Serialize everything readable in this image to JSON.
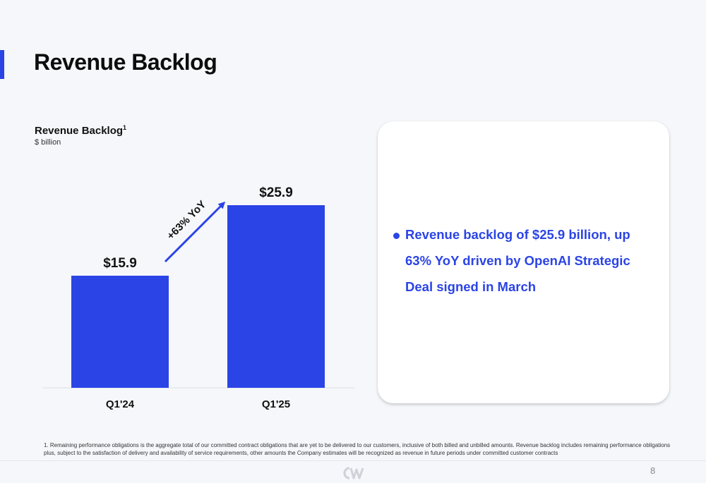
{
  "page": {
    "title": "Revenue Backlog",
    "page_number": "8"
  },
  "chart_data": {
    "type": "bar",
    "title": "Revenue Backlog",
    "title_superscript": "1",
    "subtitle": "$ billion",
    "categories": [
      "Q1'24",
      "Q1'25"
    ],
    "values": [
      15.9,
      25.9
    ],
    "data_labels": [
      "$15.9",
      "$25.9"
    ],
    "ylim": [
      0,
      34
    ],
    "grid": false,
    "bar_color": "#2b44e6",
    "annotation": {
      "text": "+63% YoY",
      "from_category": "Q1'24",
      "to_category": "Q1'25",
      "color": "#2b44e6"
    }
  },
  "summary": {
    "bullets": [
      "Revenue backlog of $25.9 billion, up 63% YoY driven by OpenAI Strategic Deal signed in March"
    ]
  },
  "footnote": "1. Remaining performance obligations is the aggregate total of our committed contract obligations that are yet to be delivered to our customers, inclusive of both billed and unbilled amounts. Revenue backlog includes remaining performance obligations plus, subject to the satisfaction of delivery and availability of service requirements, other amounts the Company estimates will be recognized as revenue in future periods under committed customer contracts",
  "colors": {
    "accent": "#2b44e6",
    "background": "#f5f7fa",
    "card": "#ffffff"
  },
  "icons": {
    "logo": "coreweave-logo-icon"
  }
}
